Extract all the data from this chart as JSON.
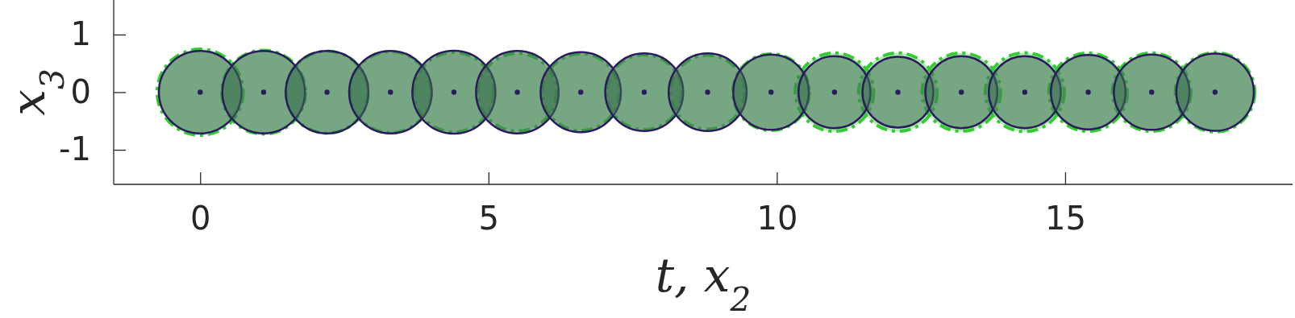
{
  "chart_data": {
    "type": "bubble",
    "xlabel": "t, x$_{2}$",
    "ylabel": "x$_{3}$",
    "xlim": [
      -1.5,
      19
    ],
    "ylim": [
      -1.6,
      1.6
    ],
    "xticks": [
      0,
      5,
      10,
      15
    ],
    "yticks": [
      {
        "value": -1,
        "label": "-1"
      },
      0,
      1
    ],
    "series": [
      {
        "color": "#33cc33",
        "line_style": "dashed",
        "x": [
          0,
          1.1,
          2.2,
          3.3,
          4.4,
          5.5,
          6.6,
          7.7,
          8.8,
          9.9,
          11,
          12.1,
          13.2,
          14.3,
          15.4,
          16.5,
          17.6
        ],
        "values": [
          0,
          0,
          0,
          0,
          0,
          0,
          0,
          0,
          0,
          0,
          0,
          0,
          0,
          0,
          0,
          0,
          0
        ],
        "sizes": [
          1,
          0.95,
          0.91,
          0.89,
          0.86,
          0.82,
          0.8,
          0.76,
          0.74,
          0.79,
          0.83,
          0.83,
          0.83,
          0.84,
          0.83,
          0.83,
          0.85
        ]
      },
      {
        "color": "#2b1b5e",
        "line_style": "solid",
        "x": [
          0,
          1.1,
          2.2,
          3.3,
          4.4,
          5.5,
          6.6,
          7.7,
          8.8,
          9.9,
          11,
          12.1,
          13.2,
          14.3,
          15.4,
          16.5,
          17.6
        ],
        "values": [
          0,
          0,
          0,
          0,
          0,
          0,
          0,
          0,
          0,
          0,
          0,
          0,
          0,
          0,
          0,
          0,
          0
        ],
        "sizes": [
          0.92,
          0.92,
          0.92,
          0.92,
          0.93,
          0.92,
          0.87,
          0.82,
          0.82,
          0.77,
          0.7,
          0.68,
          0.7,
          0.7,
          0.75,
          0.77,
          0.81
        ]
      },
      {
        "type": "scatter",
        "color": "#2b1b5e",
        "marker": "circle",
        "x": [
          0,
          1.1,
          2.2,
          3.3,
          4.4,
          5.5,
          6.6,
          7.7,
          8.8,
          9.9,
          11,
          12.1,
          13.2,
          14.3,
          15.4,
          16.5,
          17.6
        ],
        "values": [
          0,
          0,
          0,
          0,
          0,
          0,
          0,
          0,
          0,
          0,
          0,
          0,
          0,
          0,
          0,
          0,
          0
        ]
      }
    ]
  }
}
